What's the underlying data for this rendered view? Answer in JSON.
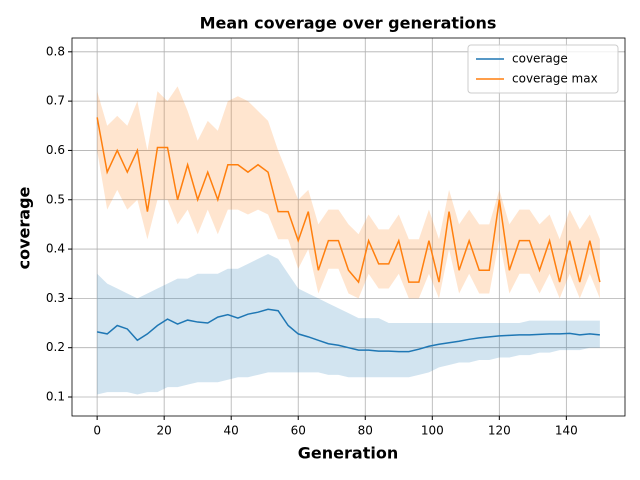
{
  "chart_data": {
    "type": "line",
    "title": "Mean coverage over generations",
    "x_label": "Generation",
    "y_label": "coverage",
    "x": [
      0,
      3,
      6,
      9,
      12,
      15,
      18,
      21,
      24,
      27,
      30,
      33,
      36,
      39,
      42,
      45,
      48,
      51,
      54,
      57,
      60,
      63,
      66,
      69,
      72,
      75,
      78,
      81,
      84,
      87,
      90,
      93,
      96,
      99,
      102,
      105,
      108,
      111,
      114,
      117,
      120,
      123,
      126,
      129,
      132,
      135,
      138,
      141,
      144,
      147,
      150
    ],
    "series": [
      {
        "name": "coverage",
        "color": "#1f77b4",
        "values": [
          0.232,
          0.228,
          0.245,
          0.238,
          0.215,
          0.228,
          0.245,
          0.258,
          0.248,
          0.256,
          0.252,
          0.25,
          0.262,
          0.267,
          0.26,
          0.268,
          0.272,
          0.278,
          0.275,
          0.245,
          0.228,
          0.222,
          0.215,
          0.208,
          0.205,
          0.2,
          0.195,
          0.195,
          0.193,
          0.193,
          0.192,
          0.192,
          0.197,
          0.203,
          0.207,
          0.21,
          0.213,
          0.217,
          0.22,
          0.222,
          0.224,
          0.225,
          0.226,
          0.226,
          0.227,
          0.228,
          0.228,
          0.229,
          0.226,
          0.228,
          0.226
        ],
        "upper": [
          0.35,
          0.33,
          0.32,
          0.31,
          0.3,
          0.31,
          0.32,
          0.33,
          0.34,
          0.34,
          0.35,
          0.35,
          0.35,
          0.36,
          0.36,
          0.37,
          0.38,
          0.39,
          0.38,
          0.35,
          0.32,
          0.31,
          0.3,
          0.29,
          0.28,
          0.27,
          0.26,
          0.26,
          0.26,
          0.25,
          0.25,
          0.25,
          0.25,
          0.25,
          0.25,
          0.25,
          0.25,
          0.25,
          0.25,
          0.25,
          0.25,
          0.25,
          0.25,
          0.255,
          0.255,
          0.255,
          0.255,
          0.255,
          0.255,
          0.255,
          0.255
        ],
        "lower": [
          0.105,
          0.11,
          0.11,
          0.11,
          0.105,
          0.11,
          0.11,
          0.12,
          0.12,
          0.125,
          0.13,
          0.13,
          0.13,
          0.135,
          0.14,
          0.14,
          0.145,
          0.15,
          0.15,
          0.15,
          0.15,
          0.15,
          0.15,
          0.145,
          0.145,
          0.14,
          0.14,
          0.14,
          0.14,
          0.14,
          0.14,
          0.14,
          0.145,
          0.15,
          0.16,
          0.165,
          0.17,
          0.17,
          0.175,
          0.175,
          0.18,
          0.18,
          0.185,
          0.185,
          0.19,
          0.19,
          0.195,
          0.195,
          0.195,
          0.2,
          0.2
        ]
      },
      {
        "name": "coverage max",
        "color": "#ff7f0e",
        "values": [
          0.667,
          0.556,
          0.6,
          0.556,
          0.6,
          0.476,
          0.606,
          0.606,
          0.5,
          0.571,
          0.5,
          0.556,
          0.5,
          0.571,
          0.571,
          0.556,
          0.571,
          0.556,
          0.476,
          0.476,
          0.417,
          0.476,
          0.357,
          0.417,
          0.417,
          0.357,
          0.333,
          0.417,
          0.37,
          0.37,
          0.417,
          0.333,
          0.333,
          0.417,
          0.333,
          0.476,
          0.357,
          0.417,
          0.357,
          0.357,
          0.5,
          0.357,
          0.417,
          0.417,
          0.357,
          0.417,
          0.333,
          0.417,
          0.333,
          0.417,
          0.333
        ],
        "upper": [
          0.72,
          0.65,
          0.67,
          0.65,
          0.7,
          0.6,
          0.72,
          0.7,
          0.73,
          0.68,
          0.62,
          0.66,
          0.64,
          0.7,
          0.71,
          0.7,
          0.68,
          0.66,
          0.6,
          0.55,
          0.5,
          0.52,
          0.45,
          0.48,
          0.48,
          0.45,
          0.43,
          0.47,
          0.44,
          0.44,
          0.47,
          0.42,
          0.42,
          0.48,
          0.42,
          0.52,
          0.45,
          0.48,
          0.45,
          0.45,
          0.52,
          0.45,
          0.48,
          0.48,
          0.45,
          0.47,
          0.42,
          0.48,
          0.44,
          0.47,
          0.42
        ],
        "lower": [
          0.6,
          0.48,
          0.52,
          0.48,
          0.5,
          0.42,
          0.5,
          0.5,
          0.45,
          0.48,
          0.43,
          0.48,
          0.43,
          0.48,
          0.48,
          0.47,
          0.48,
          0.47,
          0.42,
          0.42,
          0.36,
          0.4,
          0.31,
          0.36,
          0.36,
          0.31,
          0.3,
          0.35,
          0.32,
          0.32,
          0.35,
          0.3,
          0.3,
          0.35,
          0.3,
          0.4,
          0.31,
          0.35,
          0.31,
          0.31,
          0.42,
          0.31,
          0.35,
          0.35,
          0.31,
          0.35,
          0.3,
          0.35,
          0.3,
          0.35,
          0.3
        ]
      }
    ],
    "xlim": [
      -7.5,
      157.5
    ],
    "xticks": [
      0,
      20,
      40,
      60,
      80,
      100,
      120,
      140
    ],
    "ylim": [
      0.0615,
      0.828
    ],
    "yticks": [
      0.1,
      0.2,
      0.3,
      0.4,
      0.5,
      0.6,
      0.7,
      0.8
    ],
    "grid": true,
    "legend": "upper right"
  }
}
